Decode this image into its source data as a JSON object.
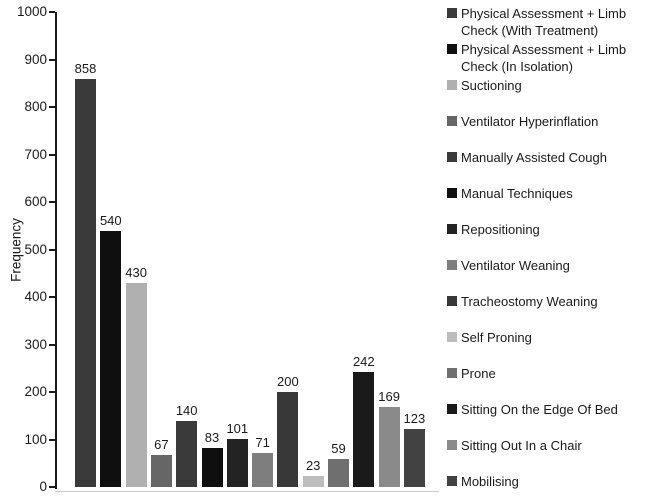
{
  "chart_data": {
    "type": "bar",
    "title": "",
    "xlabel": "",
    "ylabel": "Frequency",
    "ylim": [
      0,
      1000
    ],
    "yticks": [
      1000,
      900,
      800,
      700,
      600,
      500,
      400,
      300,
      200,
      100,
      0
    ],
    "grid": false,
    "legend_position": "right",
    "show_value_labels": true,
    "categories": [
      "Physical Assessment + Limb Check (With Treatment)",
      "Physical Assessment + Limb Check (In Isolation)",
      "Suctioning",
      "Ventilator Hyperinflation",
      "Manually Assisted Cough",
      "Manual Techniques",
      "Repositioning",
      "Ventilator Weaning",
      "Tracheostomy Weaning",
      "Self Proning",
      "Prone",
      "Sitting On the Edge Of Bed",
      "Sitting Out In a Chair",
      "Mobilising"
    ],
    "values": [
      858,
      540,
      430,
      67,
      140,
      83,
      101,
      71,
      200,
      23,
      59,
      242,
      169,
      123
    ],
    "bar_colors": [
      "#3a3a3a",
      "#0f0f0f",
      "#b0b0b0",
      "#666666",
      "#3a3a3a",
      "#0f0f0f",
      "#232323",
      "#7e7e7e",
      "#383838",
      "#bdbdbd",
      "#6f6f6f",
      "#1a1a1a",
      "#8a8a8a",
      "#424242"
    ],
    "colors": {
      "axis": "#1a1a1a",
      "text": "#1a1a1a",
      "baseline": "#cccccc",
      "background": "#ffffff"
    }
  }
}
